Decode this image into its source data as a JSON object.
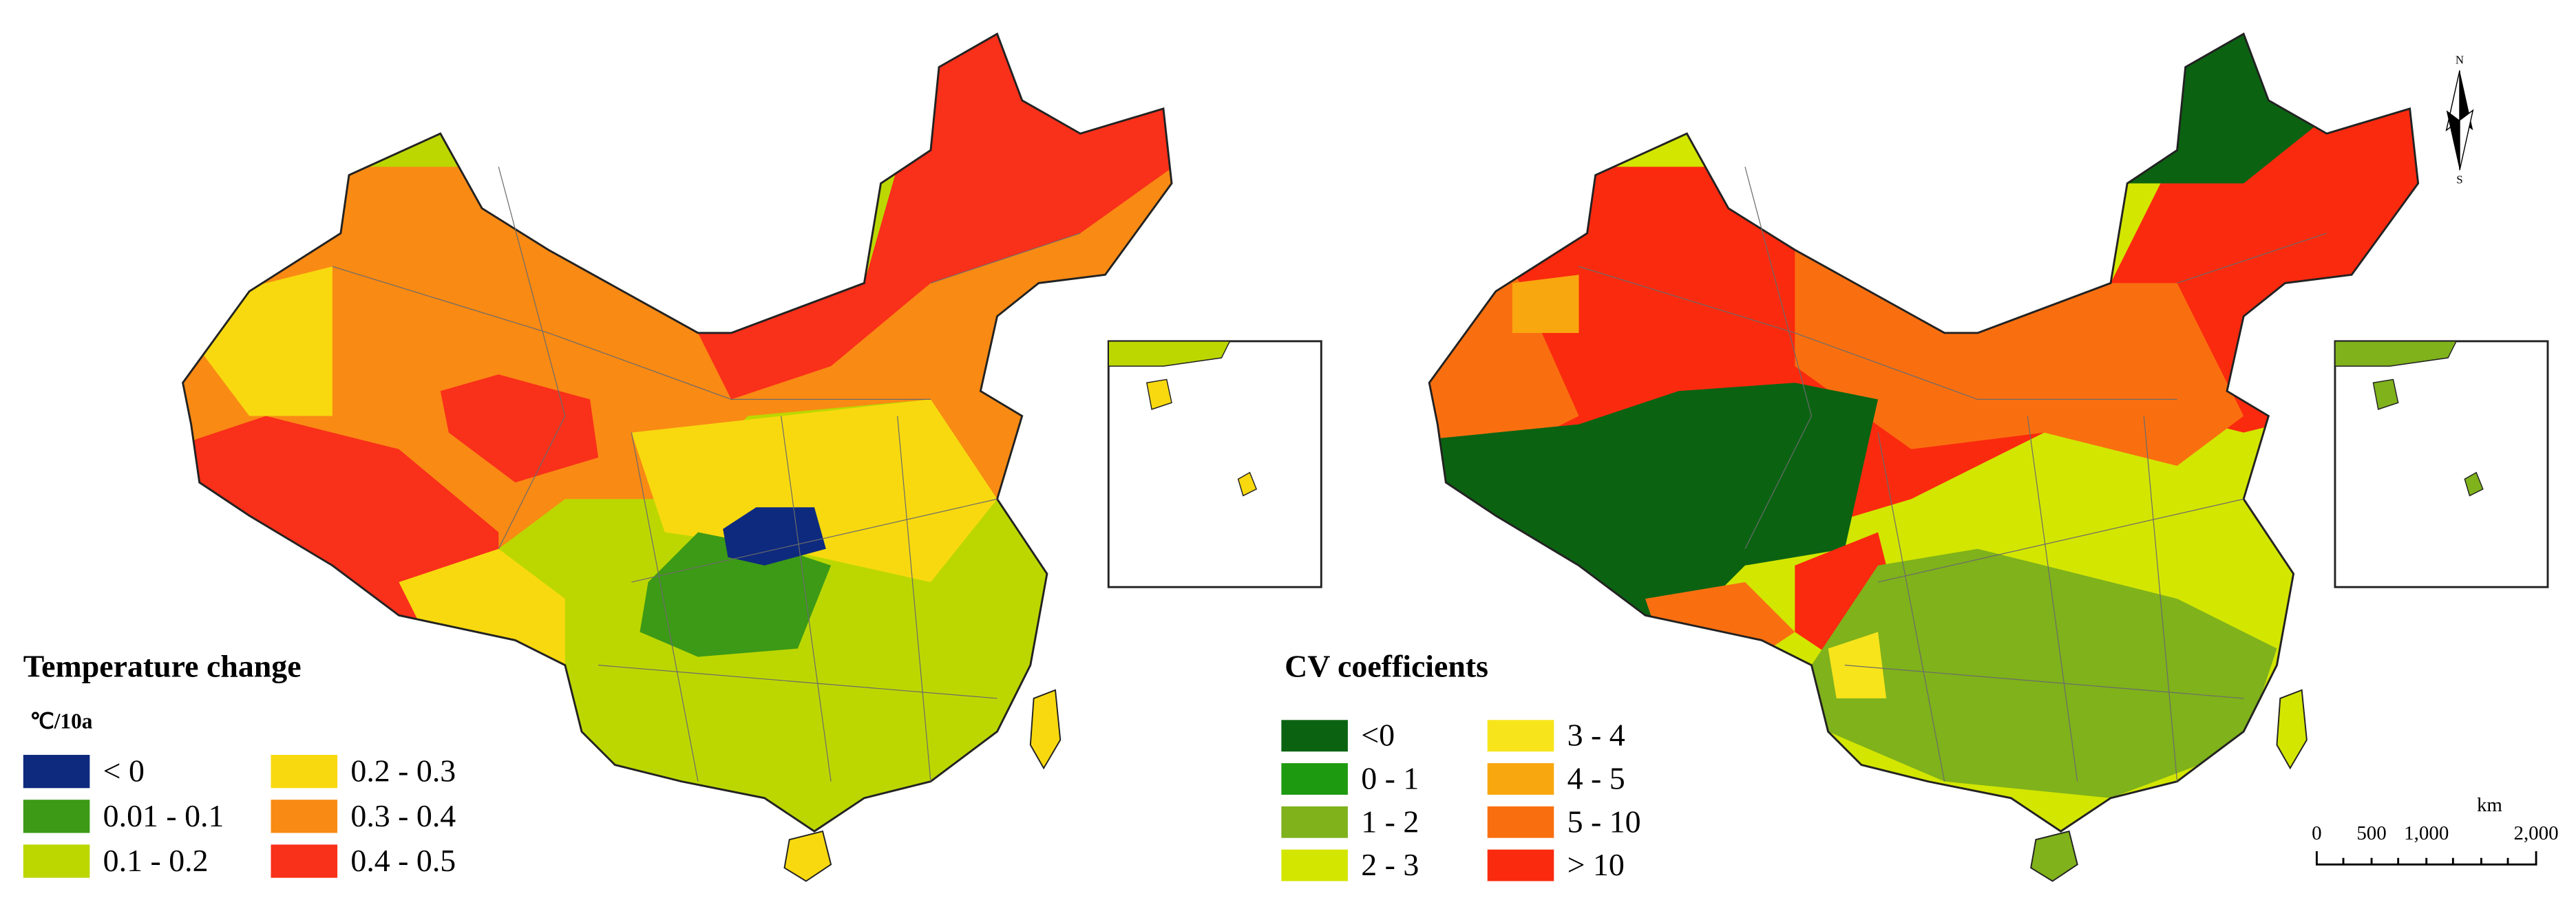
{
  "left_map": {
    "legend_title": "Temperature change",
    "unit": "℃/10a",
    "legend": [
      {
        "label": "< 0",
        "color": "#0d2a7e"
      },
      {
        "label": "0.01 - 0.1",
        "color": "#3d9a16"
      },
      {
        "label": "0.1 - 0.2",
        "color": "#bcd700"
      },
      {
        "label": "0.2 - 0.3",
        "color": "#f8d90f"
      },
      {
        "label": "0.3 - 0.4",
        "color": "#f98a14"
      },
      {
        "label": "0.4 - 0.5",
        "color": "#f9301a"
      }
    ]
  },
  "right_map": {
    "legend_title": "CV coefficients",
    "legend": [
      {
        "label": "<0",
        "color": "#0b6312"
      },
      {
        "label": "0 - 1",
        "color": "#1d9a10"
      },
      {
        "label": "1 - 2",
        "color": "#7fb21b"
      },
      {
        "label": "2 - 3",
        "color": "#d3e600"
      },
      {
        "label": "3 - 4",
        "color": "#f8e41b"
      },
      {
        "label": "4 - 5",
        "color": "#f9a70f"
      },
      {
        "label": "5 - 10",
        "color": "#f96f10"
      },
      {
        "label": "> 10",
        "color": "#fa2a0e"
      }
    ]
  },
  "scale_bar": {
    "unit": "km",
    "labels": [
      "0",
      "500",
      "1,000",
      "2,000"
    ]
  },
  "north_arrow": {
    "top": "N",
    "bottom": "S"
  }
}
